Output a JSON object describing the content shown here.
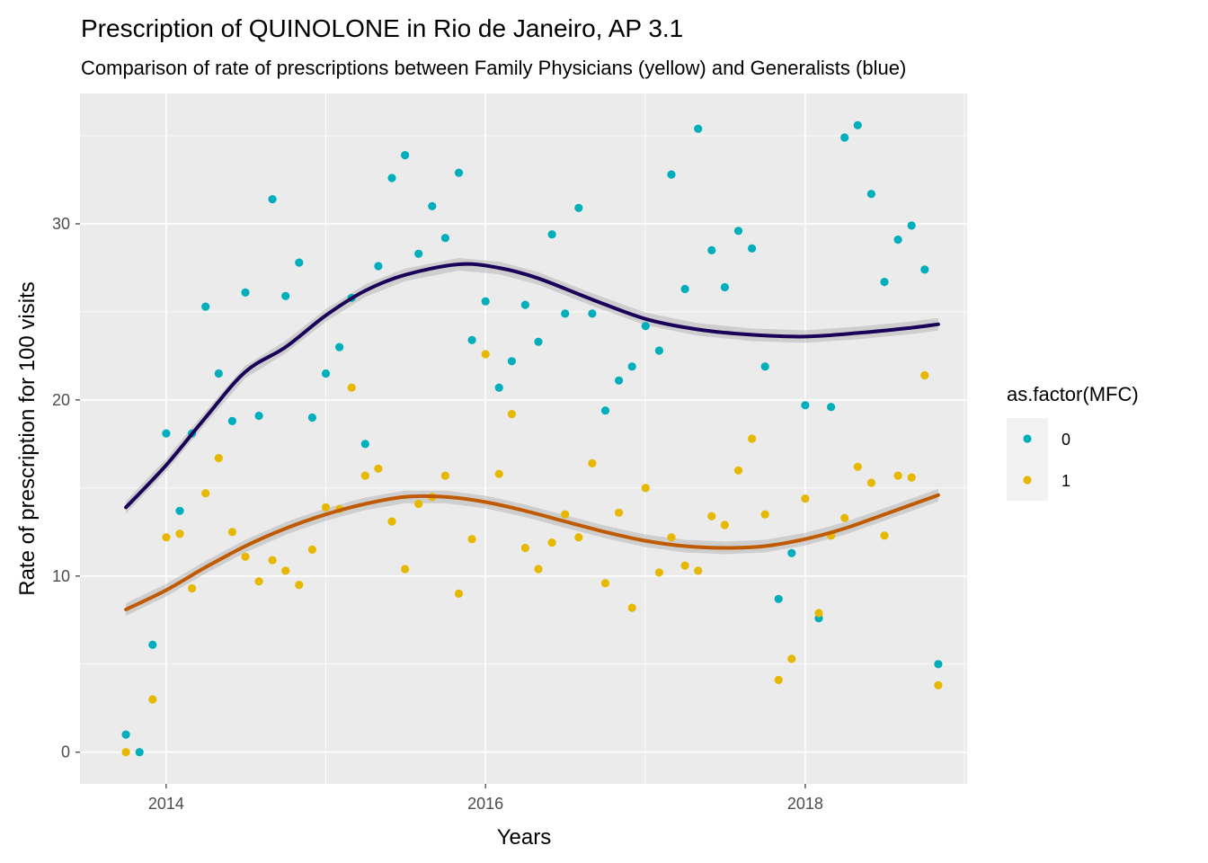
{
  "chart_data": {
    "type": "scatter",
    "title": "Prescription of QUINOLONE in Rio de Janeiro, AP 3.1",
    "subtitle": "Comparison of rate of prescriptions between Family Physicians (yellow) and Generalists (blue)",
    "xlabel": "Years",
    "ylabel": "Rate of prescription for 100 visits",
    "xlim": [
      "2013-06-18",
      "2019-01-06"
    ],
    "ylim": [
      -1.8,
      37.4
    ],
    "x_ticks": [
      {
        "value": "2014-01-01",
        "label": "2014"
      },
      {
        "value": "2016-01-01",
        "label": "2016"
      },
      {
        "value": "2018-01-01",
        "label": "2018"
      }
    ],
    "y_ticks": [
      {
        "value": 0,
        "label": "0"
      },
      {
        "value": 10,
        "label": "10"
      },
      {
        "value": 20,
        "label": "20"
      },
      {
        "value": 30,
        "label": "30"
      }
    ],
    "grid": true,
    "legend": {
      "title": "as.factor(MFC)",
      "position": "right"
    },
    "series": [
      {
        "name": "0",
        "color": "#00AFBB",
        "smooth_color": "#1a0059",
        "points": [
          [
            "2013-10-01",
            1.0
          ],
          [
            "2013-11-01",
            0.0
          ],
          [
            "2013-12-01",
            6.1
          ],
          [
            "2014-01-01",
            18.1
          ],
          [
            "2014-02-01",
            13.7
          ],
          [
            "2014-03-01",
            18.1
          ],
          [
            "2014-04-01",
            25.3
          ],
          [
            "2014-05-01",
            21.5
          ],
          [
            "2014-06-01",
            18.8
          ],
          [
            "2014-07-01",
            26.1
          ],
          [
            "2014-08-01",
            19.1
          ],
          [
            "2014-09-01",
            31.4
          ],
          [
            "2014-10-01",
            25.9
          ],
          [
            "2014-11-01",
            27.8
          ],
          [
            "2014-12-01",
            19.0
          ],
          [
            "2015-01-01",
            21.5
          ],
          [
            "2015-02-01",
            23.0
          ],
          [
            "2015-03-01",
            25.8
          ],
          [
            "2015-04-01",
            17.5
          ],
          [
            "2015-05-01",
            27.6
          ],
          [
            "2015-06-01",
            32.6
          ],
          [
            "2015-07-01",
            33.9
          ],
          [
            "2015-08-01",
            28.3
          ],
          [
            "2015-09-01",
            31.0
          ],
          [
            "2015-10-01",
            29.2
          ],
          [
            "2015-11-01",
            32.9
          ],
          [
            "2015-12-01",
            23.4
          ],
          [
            "2016-01-01",
            25.6
          ],
          [
            "2016-02-01",
            20.7
          ],
          [
            "2016-03-01",
            22.2
          ],
          [
            "2016-04-01",
            25.4
          ],
          [
            "2016-05-01",
            23.3
          ],
          [
            "2016-06-01",
            29.4
          ],
          [
            "2016-07-01",
            24.9
          ],
          [
            "2016-08-01",
            30.9
          ],
          [
            "2016-09-01",
            24.9
          ],
          [
            "2016-10-01",
            19.4
          ],
          [
            "2016-11-01",
            21.1
          ],
          [
            "2016-12-01",
            21.9
          ],
          [
            "2017-01-01",
            24.2
          ],
          [
            "2017-02-01",
            22.8
          ],
          [
            "2017-03-01",
            32.8
          ],
          [
            "2017-04-01",
            26.3
          ],
          [
            "2017-05-01",
            35.4
          ],
          [
            "2017-06-01",
            28.5
          ],
          [
            "2017-07-01",
            26.4
          ],
          [
            "2017-08-01",
            29.6
          ],
          [
            "2017-09-01",
            28.6
          ],
          [
            "2017-10-01",
            21.9
          ],
          [
            "2017-11-01",
            8.7
          ],
          [
            "2017-12-01",
            11.3
          ],
          [
            "2018-01-01",
            19.7
          ],
          [
            "2018-02-01",
            7.6
          ],
          [
            "2018-03-01",
            19.6
          ],
          [
            "2018-04-01",
            34.9
          ],
          [
            "2018-05-01",
            35.6
          ],
          [
            "2018-06-01",
            31.7
          ],
          [
            "2018-07-01",
            26.7
          ],
          [
            "2018-08-01",
            29.1
          ],
          [
            "2018-09-01",
            29.9
          ],
          [
            "2018-10-01",
            27.4
          ],
          [
            "2018-11-01",
            5.0
          ]
        ],
        "smooth": [
          [
            "2013-10-01",
            13.9
          ],
          [
            "2014-01-01",
            16.3
          ],
          [
            "2014-04-01",
            19.0
          ],
          [
            "2014-07-01",
            21.6
          ],
          [
            "2014-10-01",
            23.0
          ],
          [
            "2015-01-01",
            24.8
          ],
          [
            "2015-04-01",
            26.2
          ],
          [
            "2015-07-01",
            27.1
          ],
          [
            "2015-11-01",
            27.7
          ],
          [
            "2016-02-01",
            27.5
          ],
          [
            "2016-05-01",
            26.9
          ],
          [
            "2016-09-01",
            25.7
          ],
          [
            "2017-01-01",
            24.6
          ],
          [
            "2017-05-01",
            24.0
          ],
          [
            "2017-09-01",
            23.7
          ],
          [
            "2018-01-01",
            23.6
          ],
          [
            "2018-05-01",
            23.8
          ],
          [
            "2018-09-01",
            24.1
          ],
          [
            "2018-11-01",
            24.3
          ]
        ]
      },
      {
        "name": "1",
        "color": "#E7B800",
        "smooth_color": "#c05a00",
        "points": [
          [
            "2013-10-01",
            0.0
          ],
          [
            "2013-12-01",
            3.0
          ],
          [
            "2014-01-01",
            12.2
          ],
          [
            "2014-02-01",
            12.4
          ],
          [
            "2014-03-01",
            9.3
          ],
          [
            "2014-04-01",
            14.7
          ],
          [
            "2014-05-01",
            16.7
          ],
          [
            "2014-06-01",
            12.5
          ],
          [
            "2014-07-01",
            11.1
          ],
          [
            "2014-08-01",
            9.7
          ],
          [
            "2014-09-01",
            10.9
          ],
          [
            "2014-10-01",
            10.3
          ],
          [
            "2014-11-01",
            9.5
          ],
          [
            "2014-12-01",
            11.5
          ],
          [
            "2015-01-01",
            13.9
          ],
          [
            "2015-02-01",
            13.8
          ],
          [
            "2015-03-01",
            20.7
          ],
          [
            "2015-04-01",
            15.7
          ],
          [
            "2015-05-01",
            16.1
          ],
          [
            "2015-06-01",
            13.1
          ],
          [
            "2015-07-01",
            10.4
          ],
          [
            "2015-08-01",
            14.1
          ],
          [
            "2015-09-01",
            14.5
          ],
          [
            "2015-10-01",
            15.7
          ],
          [
            "2015-11-01",
            9.0
          ],
          [
            "2015-12-01",
            12.1
          ],
          [
            "2016-01-01",
            22.6
          ],
          [
            "2016-02-01",
            15.8
          ],
          [
            "2016-03-01",
            19.2
          ],
          [
            "2016-04-01",
            11.6
          ],
          [
            "2016-05-01",
            10.4
          ],
          [
            "2016-06-01",
            11.9
          ],
          [
            "2016-07-01",
            13.5
          ],
          [
            "2016-08-01",
            12.2
          ],
          [
            "2016-09-01",
            16.4
          ],
          [
            "2016-10-01",
            9.6
          ],
          [
            "2016-11-01",
            13.6
          ],
          [
            "2016-12-01",
            8.2
          ],
          [
            "2017-01-01",
            15.0
          ],
          [
            "2017-02-01",
            10.2
          ],
          [
            "2017-03-01",
            12.2
          ],
          [
            "2017-04-01",
            10.6
          ],
          [
            "2017-05-01",
            10.3
          ],
          [
            "2017-06-01",
            13.4
          ],
          [
            "2017-07-01",
            12.9
          ],
          [
            "2017-08-01",
            16.0
          ],
          [
            "2017-09-01",
            17.8
          ],
          [
            "2017-10-01",
            13.5
          ],
          [
            "2017-11-01",
            4.1
          ],
          [
            "2017-12-01",
            5.3
          ],
          [
            "2018-01-01",
            14.4
          ],
          [
            "2018-02-01",
            7.9
          ],
          [
            "2018-03-01",
            12.3
          ],
          [
            "2018-04-01",
            13.3
          ],
          [
            "2018-05-01",
            16.2
          ],
          [
            "2018-06-01",
            15.3
          ],
          [
            "2018-07-01",
            12.3
          ],
          [
            "2018-08-01",
            15.7
          ],
          [
            "2018-09-01",
            15.6
          ],
          [
            "2018-10-01",
            21.4
          ],
          [
            "2018-11-01",
            3.8
          ]
        ],
        "smooth": [
          [
            "2013-10-01",
            8.1
          ],
          [
            "2014-01-01",
            9.2
          ],
          [
            "2014-04-01",
            10.5
          ],
          [
            "2014-07-01",
            11.7
          ],
          [
            "2014-10-01",
            12.7
          ],
          [
            "2015-01-01",
            13.5
          ],
          [
            "2015-04-01",
            14.1
          ],
          [
            "2015-07-01",
            14.5
          ],
          [
            "2015-10-01",
            14.5
          ],
          [
            "2016-01-01",
            14.2
          ],
          [
            "2016-04-01",
            13.7
          ],
          [
            "2016-07-01",
            13.1
          ],
          [
            "2016-10-01",
            12.5
          ],
          [
            "2017-01-01",
            12.0
          ],
          [
            "2017-04-01",
            11.7
          ],
          [
            "2017-07-01",
            11.6
          ],
          [
            "2017-10-01",
            11.7
          ],
          [
            "2018-01-01",
            12.1
          ],
          [
            "2018-04-01",
            12.7
          ],
          [
            "2018-07-01",
            13.5
          ],
          [
            "2018-11-01",
            14.6
          ]
        ]
      }
    ]
  }
}
